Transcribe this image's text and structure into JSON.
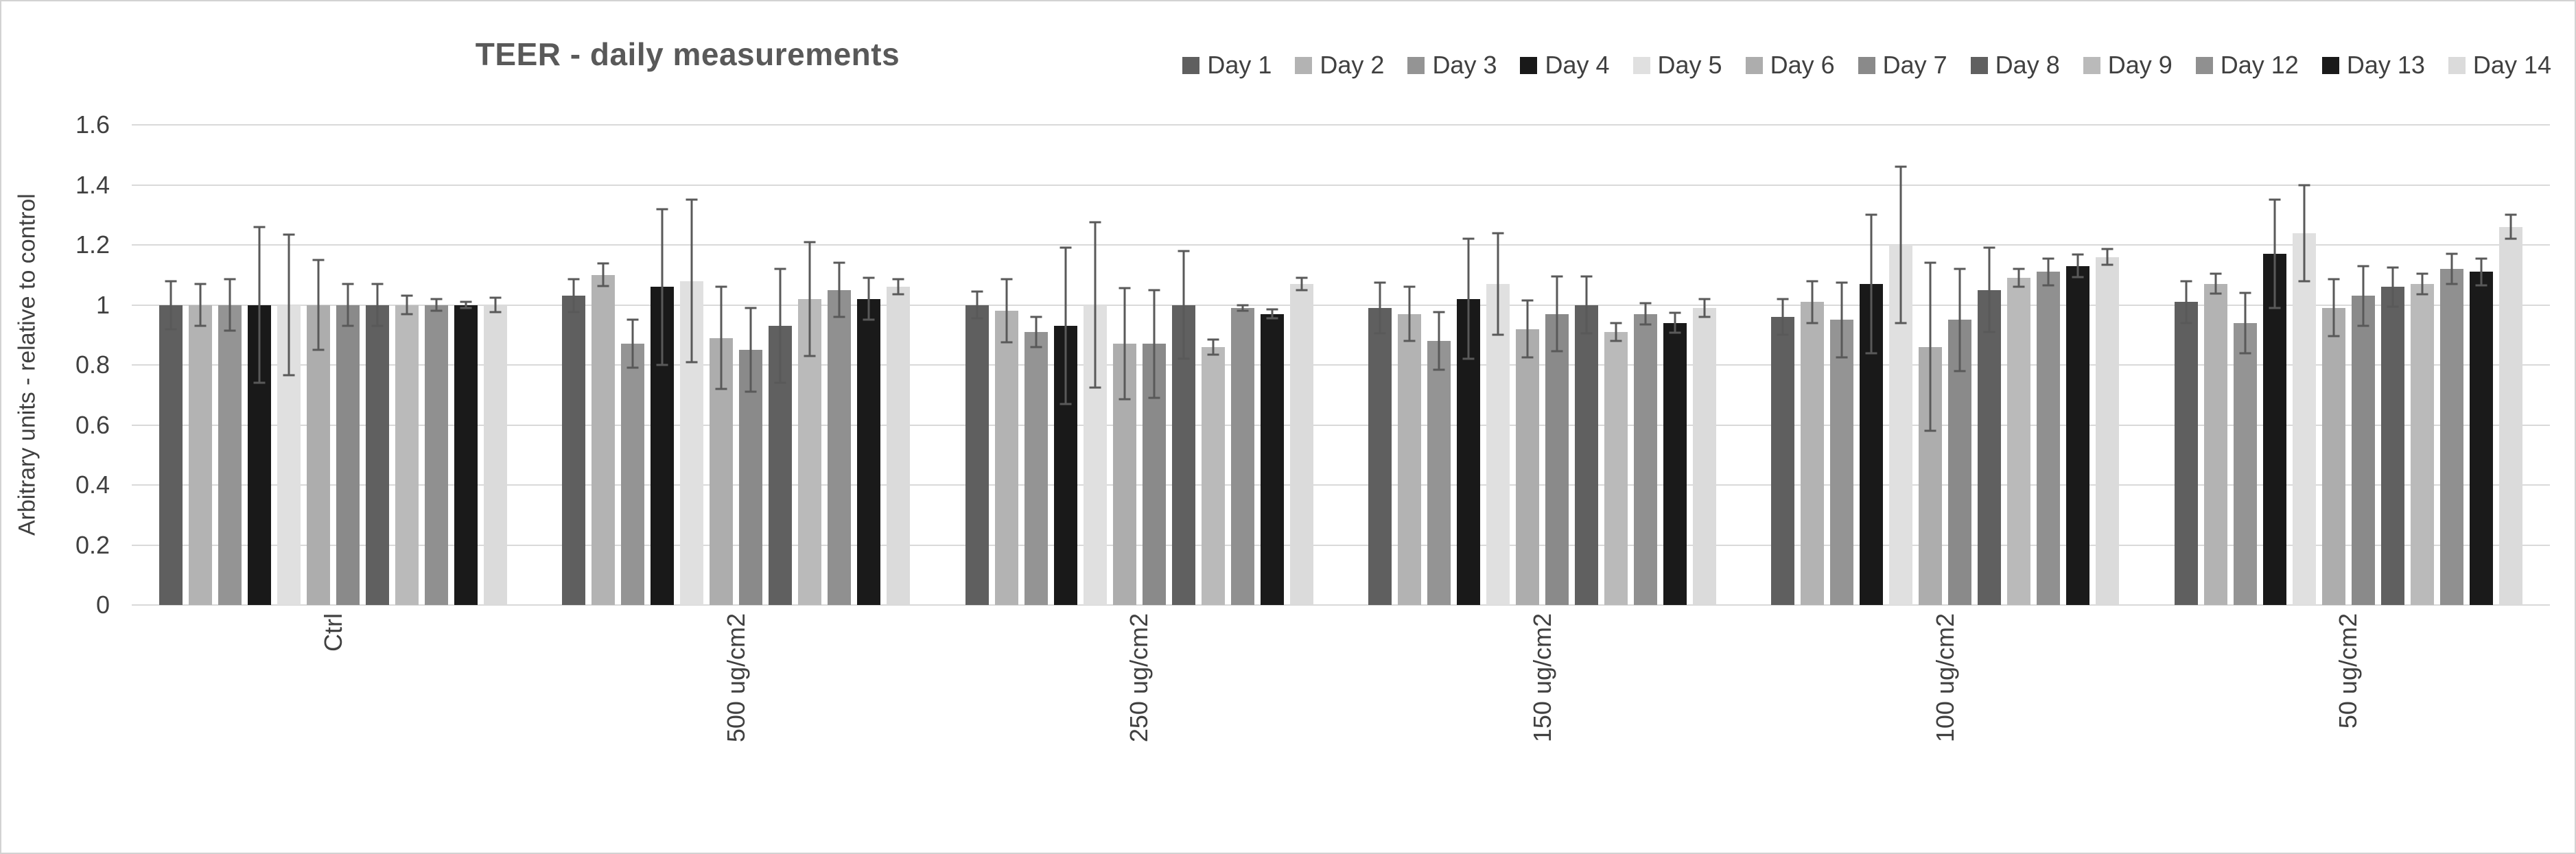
{
  "chart_data": {
    "type": "bar",
    "title": "TEER - daily measurements",
    "xlabel": "",
    "ylabel": "Arbitrary units - relative to control",
    "ylim": [
      0,
      1.6
    ],
    "ytick_step": 0.2,
    "yticks_bottom_up": [
      "0",
      "0.2",
      "0.4",
      "0.6",
      "0.8",
      "1",
      "1.2",
      "1.4",
      "1.6"
    ],
    "grid": true,
    "gridline_color": "#d9d9d9",
    "error_bar_color": "#595959",
    "legend_position": "top-right",
    "categories": [
      "Ctrl",
      "500 ug/cm2",
      "250 ug/cm2",
      "150 ug/cm2",
      "100 ug/cm2",
      "50 ug/cm2"
    ],
    "series": [
      {
        "name": "Day 1",
        "color": "#5f5f5f",
        "values": [
          1.0,
          1.03,
          1.0,
          0.99,
          0.96,
          1.01
        ],
        "errors": [
          0.08,
          0.055,
          0.045,
          0.085,
          0.06,
          0.07
        ]
      },
      {
        "name": "Day 2",
        "color": "#b3b3b3",
        "values": [
          1.0,
          1.1,
          0.98,
          0.97,
          1.01,
          1.07
        ],
        "errors": [
          0.07,
          0.038,
          0.105,
          0.09,
          0.07,
          0.033
        ]
      },
      {
        "name": "Day 3",
        "color": "#949494",
        "values": [
          1.0,
          0.87,
          0.91,
          0.88,
          0.95,
          0.94
        ],
        "errors": [
          0.085,
          0.08,
          0.05,
          0.095,
          0.125,
          0.1
        ]
      },
      {
        "name": "Day 4",
        "color": "#191919",
        "values": [
          1.0,
          1.06,
          0.93,
          1.02,
          1.07,
          1.17
        ],
        "errors": [
          0.26,
          0.26,
          0.26,
          0.2,
          0.23,
          0.18
        ]
      },
      {
        "name": "Day 5",
        "color": "#e0e0e0",
        "values": [
          1.0,
          1.08,
          1.0,
          1.07,
          1.2,
          1.24
        ],
        "errors": [
          0.235,
          0.27,
          0.275,
          0.17,
          0.26,
          0.16
        ]
      },
      {
        "name": "Day 6",
        "color": "#adadad",
        "values": [
          1.0,
          0.89,
          0.87,
          0.92,
          0.86,
          0.99
        ],
        "errors": [
          0.15,
          0.17,
          0.185,
          0.095,
          0.28,
          0.095
        ]
      },
      {
        "name": "Day 7",
        "color": "#8a8a8a",
        "values": [
          1.0,
          0.85,
          0.87,
          0.97,
          0.95,
          1.03
        ],
        "errors": [
          0.07,
          0.14,
          0.18,
          0.125,
          0.17,
          0.1
        ]
      },
      {
        "name": "Day 8",
        "color": "#606060",
        "values": [
          1.0,
          0.93,
          1.0,
          1.0,
          1.05,
          1.06
        ],
        "errors": [
          0.07,
          0.19,
          0.18,
          0.095,
          0.14,
          0.065
        ]
      },
      {
        "name": "Day 9",
        "color": "#bababa",
        "values": [
          1.0,
          1.02,
          0.86,
          0.91,
          1.09,
          1.07
        ],
        "errors": [
          0.03,
          0.19,
          0.025,
          0.03,
          0.03,
          0.035
        ]
      },
      {
        "name": "Day 12",
        "color": "#909090",
        "values": [
          1.0,
          1.05,
          0.99,
          0.97,
          1.11,
          1.12
        ],
        "errors": [
          0.02,
          0.09,
          0.01,
          0.035,
          0.045,
          0.05
        ]
      },
      {
        "name": "Day 13",
        "color": "#1a1a1a",
        "values": [
          1.0,
          1.02,
          0.97,
          0.94,
          1.13,
          1.11
        ],
        "errors": [
          0.01,
          0.07,
          0.015,
          0.033,
          0.037,
          0.045
        ]
      },
      {
        "name": "Day 14",
        "color": "#dbdbdb",
        "values": [
          1.0,
          1.06,
          1.07,
          0.99,
          1.16,
          1.26
        ],
        "errors": [
          0.025,
          0.025,
          0.02,
          0.03,
          0.027,
          0.04
        ]
      }
    ]
  }
}
